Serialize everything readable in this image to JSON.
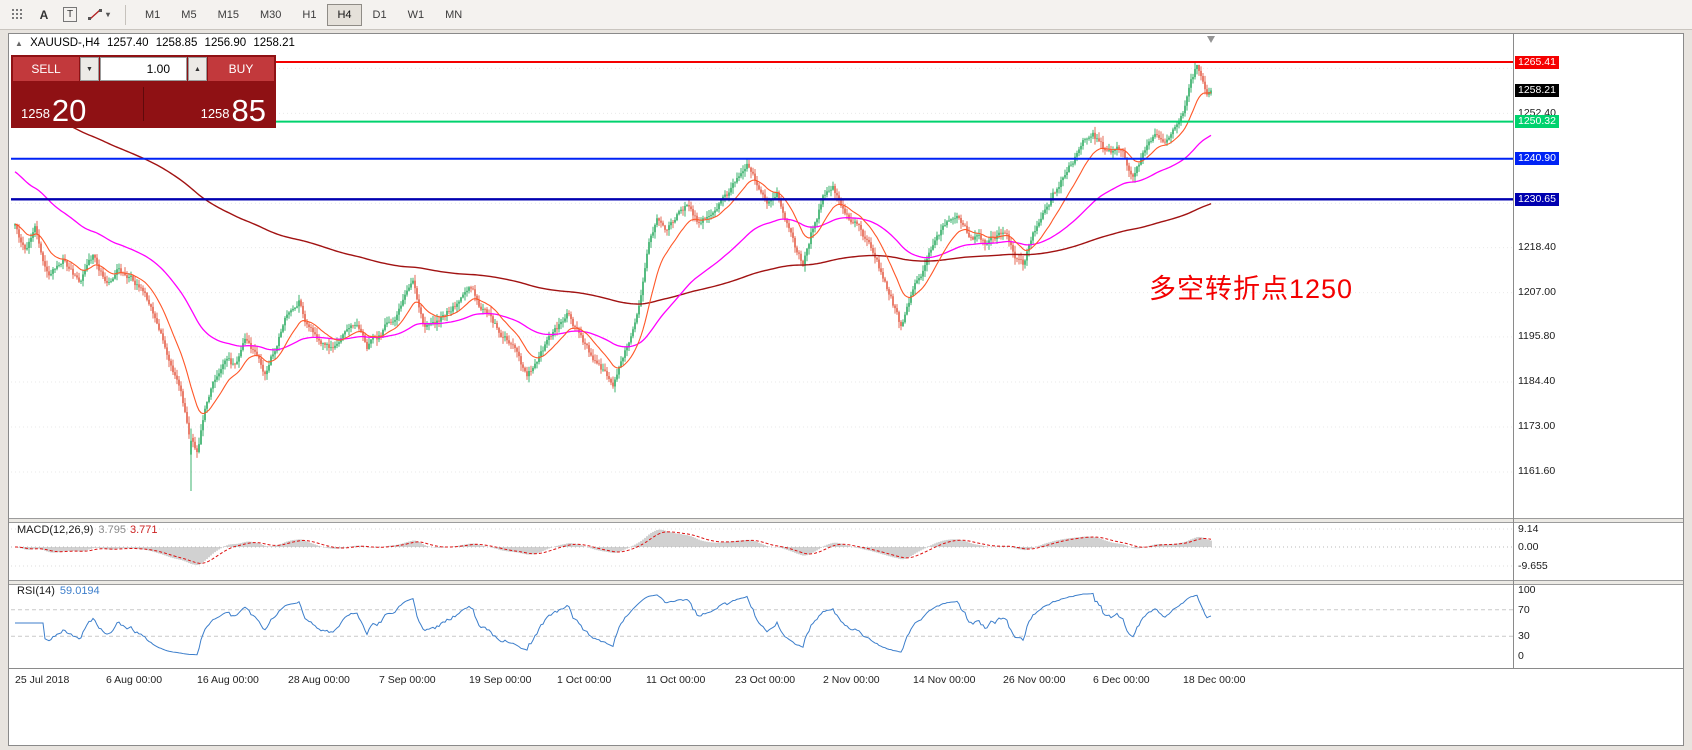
{
  "icons": {
    "collapse": "▲",
    "dropdown": "▼",
    "volume_up": "▲",
    "chevron_down": "▾"
  },
  "toolbar": {
    "tool_labels": {
      "label_tool": "A",
      "text_tool": "T"
    },
    "timeframes": [
      "M1",
      "M5",
      "M15",
      "M30",
      "H1",
      "H4",
      "D1",
      "W1",
      "MN"
    ],
    "active_timeframe": "H4"
  },
  "header": {
    "symbol_title": "XAUUSD-,H4",
    "open": "1257.40",
    "high": "1258.85",
    "low": "1256.90",
    "close": "1258.21"
  },
  "trade_panel": {
    "sell_label": "SELL",
    "buy_label": "BUY",
    "volume": "1.00",
    "sell_price": {
      "main": "1258",
      "big": "20"
    },
    "buy_price": {
      "main": "1258",
      "big": "85"
    }
  },
  "annotation": {
    "text": "多空转折点1250",
    "color": "#f30000"
  },
  "hlines": [
    {
      "price": 1265.41,
      "color": "#f50000",
      "width": 2
    },
    {
      "price": 1250.32,
      "color": "#00d26e",
      "width": 2
    },
    {
      "price": 1240.9,
      "color": "#0023f5",
      "width": 2
    },
    {
      "price": 1230.65,
      "color": "#0000b0",
      "width": 2.4
    }
  ],
  "current_price": {
    "value": 1258.21,
    "label": "1258.21"
  },
  "price_ticks": [
    "1252.40",
    "1218.40",
    "1207.00",
    "1195.80",
    "1184.40",
    "1173.00",
    "1161.60"
  ],
  "grid_prices": [
    1263.8,
    1252.4,
    1241.0,
    1229.6,
    1218.4,
    1207.0,
    1195.8,
    1184.4,
    1173.0,
    1161.6
  ],
  "macd": {
    "label": "MACD(12,26,9)",
    "value_hist": "3.795",
    "value_signal": "3.771",
    "axis": [
      "9.14",
      "0.00",
      "-9.655"
    ]
  },
  "rsi": {
    "label": "RSI(14)",
    "value": "59.0194",
    "axis": [
      "100",
      "70",
      "30",
      "0"
    ],
    "levels": [
      70,
      30
    ]
  },
  "time_axis": [
    "25 Jul 2018",
    "6 Aug 00:00",
    "16 Aug 00:00",
    "28 Aug 00:00",
    "7 Sep 00:00",
    "19 Sep 00:00",
    "1 Oct 00:00",
    "11 Oct 00:00",
    "23 Oct 00:00",
    "2 Nov 00:00",
    "14 Nov 00:00",
    "26 Nov 00:00",
    "6 Dec 00:00",
    "18 Dec 00:00"
  ],
  "chart_data": {
    "type": "candlestick",
    "symbol": "XAUUSD-",
    "timeframe": "H4",
    "visible_price_range": [
      1150.0,
      1266.9
    ],
    "colors": {
      "up": "#0da04b",
      "down": "#e0462d",
      "ma_fast": "#ff5728",
      "ma_mid": "#ff00ff",
      "ma_slow": "#a11212",
      "macd_hist": "#b2b2b2",
      "macd_signal": "#dd1111",
      "rsi": "#3c7ecb"
    },
    "price_path": [
      [
        14,
        1224
      ],
      [
        24,
        1218
      ],
      [
        34,
        1223
      ],
      [
        48,
        1212
      ],
      [
        62,
        1217
      ],
      [
        78,
        1210
      ],
      [
        92,
        1215
      ],
      [
        105,
        1209
      ],
      [
        118,
        1213
      ],
      [
        132,
        1210
      ],
      [
        145,
        1206
      ],
      [
        158,
        1197
      ],
      [
        170,
        1190
      ],
      [
        180,
        1181
      ],
      [
        188,
        1172
      ],
      [
        196,
        1167
      ],
      [
        204,
        1178
      ],
      [
        214,
        1185
      ],
      [
        224,
        1191
      ],
      [
        234,
        1188
      ],
      [
        244,
        1195
      ],
      [
        254,
        1191
      ],
      [
        264,
        1186
      ],
      [
        274,
        1193
      ],
      [
        287,
        1202
      ],
      [
        298,
        1205
      ],
      [
        308,
        1198
      ],
      [
        320,
        1194
      ],
      [
        332,
        1192
      ],
      [
        344,
        1197
      ],
      [
        356,
        1200
      ],
      [
        366,
        1194
      ],
      [
        378,
        1196
      ],
      [
        390,
        1200
      ],
      [
        402,
        1205
      ],
      [
        412,
        1209
      ],
      [
        422,
        1200
      ],
      [
        434,
        1198
      ],
      [
        446,
        1202
      ],
      [
        458,
        1205
      ],
      [
        468,
        1207
      ],
      [
        480,
        1203
      ],
      [
        492,
        1199
      ],
      [
        504,
        1196
      ],
      [
        516,
        1191
      ],
      [
        526,
        1184
      ],
      [
        536,
        1190
      ],
      [
        546,
        1194
      ],
      [
        556,
        1197
      ],
      [
        568,
        1201
      ],
      [
        578,
        1196
      ],
      [
        590,
        1191
      ],
      [
        602,
        1187
      ],
      [
        612,
        1184
      ],
      [
        622,
        1191
      ],
      [
        632,
        1197
      ],
      [
        640,
        1206
      ],
      [
        648,
        1219
      ],
      [
        656,
        1224
      ],
      [
        666,
        1221
      ],
      [
        676,
        1226
      ],
      [
        688,
        1229
      ],
      [
        700,
        1224
      ],
      [
        712,
        1228
      ],
      [
        724,
        1231
      ],
      [
        736,
        1235
      ],
      [
        746,
        1240
      ],
      [
        756,
        1234
      ],
      [
        766,
        1231
      ],
      [
        776,
        1233
      ],
      [
        786,
        1226
      ],
      [
        794,
        1218
      ],
      [
        802,
        1214
      ],
      [
        810,
        1222
      ],
      [
        822,
        1231
      ],
      [
        832,
        1233
      ],
      [
        842,
        1229
      ],
      [
        854,
        1225
      ],
      [
        866,
        1220
      ],
      [
        878,
        1213
      ],
      [
        890,
        1206
      ],
      [
        900,
        1198
      ],
      [
        908,
        1204
      ],
      [
        916,
        1210
      ],
      [
        926,
        1215
      ],
      [
        936,
        1220
      ],
      [
        946,
        1224
      ],
      [
        956,
        1226
      ],
      [
        966,
        1222
      ],
      [
        976,
        1221
      ],
      [
        986,
        1219
      ],
      [
        996,
        1221
      ],
      [
        1006,
        1222
      ],
      [
        1014,
        1215
      ],
      [
        1022,
        1214
      ],
      [
        1032,
        1222
      ],
      [
        1042,
        1226
      ],
      [
        1052,
        1231
      ],
      [
        1062,
        1236
      ],
      [
        1072,
        1241
      ],
      [
        1082,
        1245
      ],
      [
        1092,
        1248
      ],
      [
        1102,
        1244
      ],
      [
        1112,
        1242
      ],
      [
        1122,
        1243
      ],
      [
        1132,
        1236
      ],
      [
        1142,
        1241
      ],
      [
        1152,
        1245
      ],
      [
        1162,
        1246
      ],
      [
        1172,
        1248
      ],
      [
        1182,
        1252
      ],
      [
        1190,
        1260
      ],
      [
        1196,
        1264
      ],
      [
        1202,
        1259
      ],
      [
        1206,
        1257
      ],
      [
        1210,
        1258.2
      ]
    ],
    "marks": {
      "swing_low": 1156.8,
      "swing_high": 1265.41,
      "last_close": 1258.21
    }
  }
}
